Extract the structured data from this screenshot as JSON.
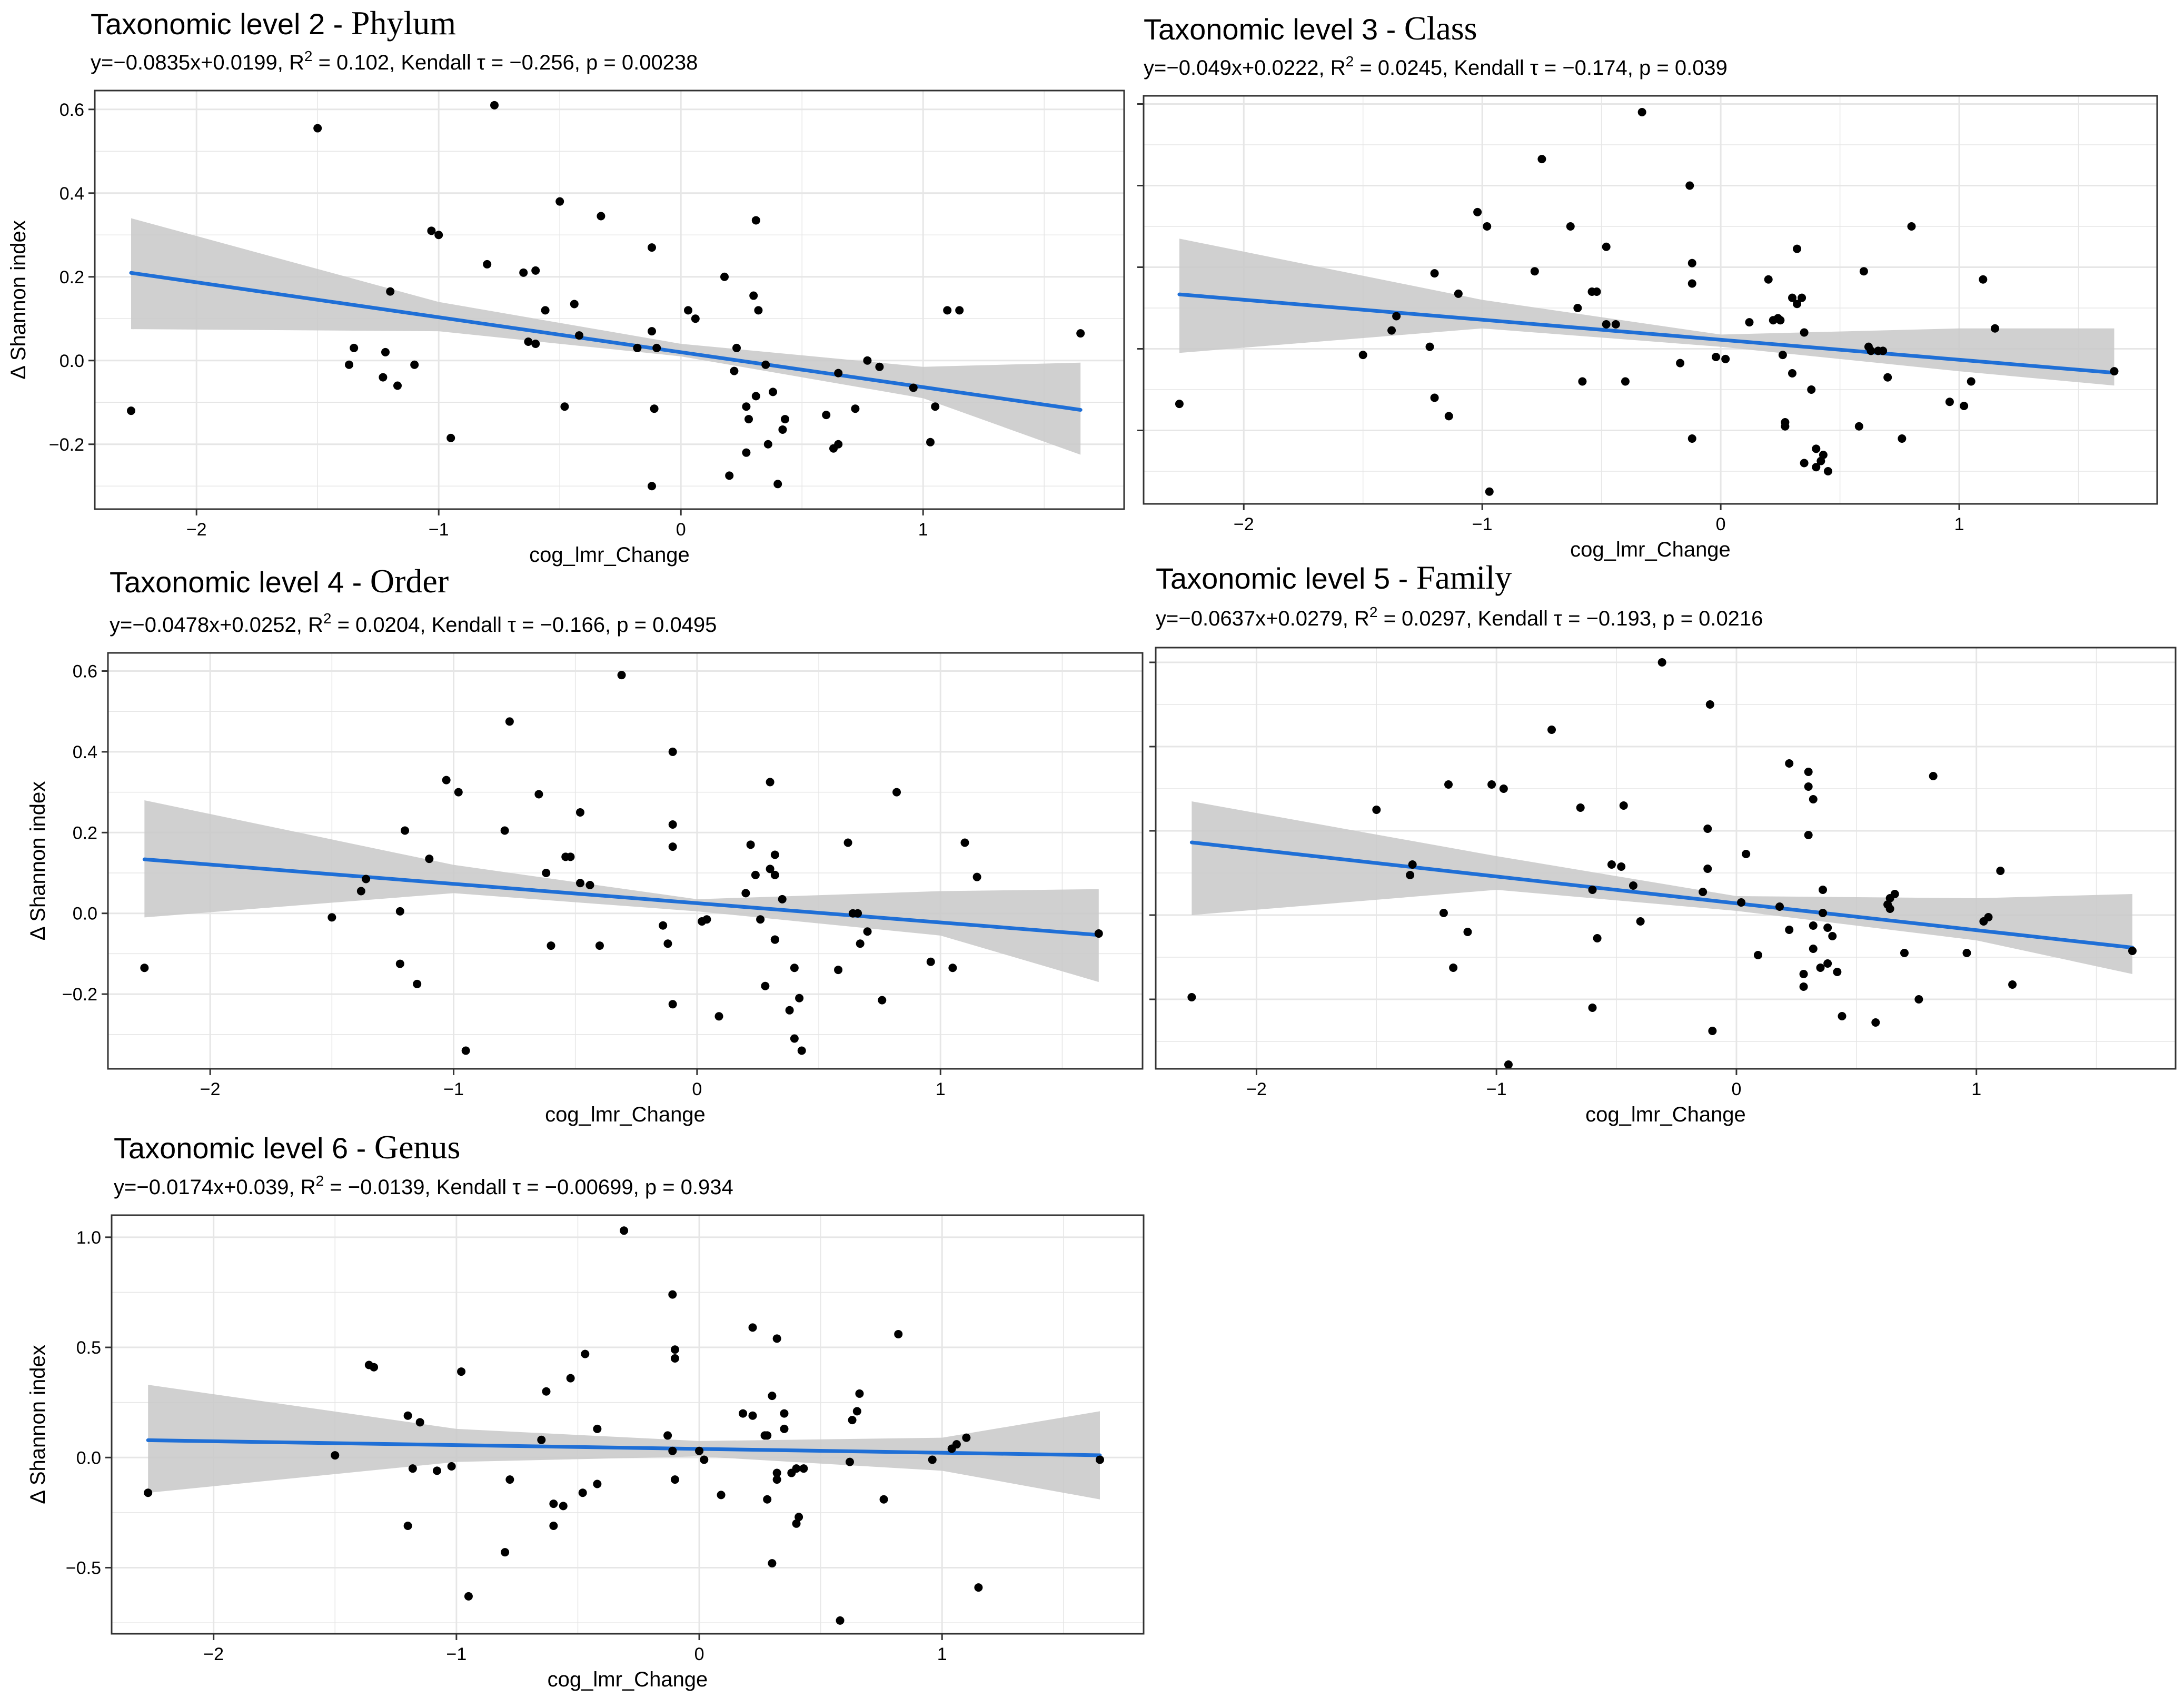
{
  "colors": {
    "line": "#1f6fd6",
    "band": "#c8c8c8",
    "point": "#000000",
    "grid": "#e6e6e6",
    "frame": "#333333"
  },
  "chart_data": [
    {
      "type": "scatter",
      "panel": "phylum",
      "title_prefix": "Taxonomic level 2 - ",
      "title_taxon": "Phylum",
      "equation": "y=−0.0835x+0.0199, R",
      "stats": " = 0.102, Kendall τ = −0.256, p = 0.00238",
      "xlabel": "cog_lmr_Change",
      "ylabel": "Δ Shannon index",
      "xlim": [
        -2.42,
        1.83
      ],
      "ylim": [
        -0.355,
        0.645
      ],
      "xticks": [
        -2,
        -1,
        0,
        1
      ],
      "xtick_labels": [
        "−2",
        "−1",
        "0",
        "1"
      ],
      "yticks": [
        -0.2,
        0.0,
        0.2,
        0.4,
        0.6
      ],
      "ytick_labels": [
        "−0.2",
        "0.0",
        "0.2",
        "0.4",
        "0.6"
      ],
      "fit": {
        "slope": -0.0835,
        "intercept": 0.0199,
        "x_range": [
          -2.27,
          1.65
        ]
      },
      "band": {
        "x": [
          -2.27,
          -1.0,
          0.0,
          1.0,
          1.65
        ],
        "lower": [
          0.075,
          0.07,
          0.01,
          -0.09,
          -0.225
        ],
        "upper": [
          0.34,
          0.14,
          0.04,
          -0.015,
          -0.005
        ]
      },
      "points": {
        "x": [
          -2.27,
          -1.5,
          -0.77,
          -1.03,
          -1.0,
          -0.5,
          -0.33,
          -0.8,
          -0.65,
          -0.6,
          -1.2,
          -1.35,
          -1.37,
          -1.23,
          -1.22,
          -1.17,
          -1.1,
          -0.95,
          -0.63,
          -0.6,
          -0.56,
          -0.48,
          -0.44,
          -0.42,
          -0.18,
          -0.12,
          -0.11,
          -0.12,
          -0.12,
          -0.1,
          0.03,
          0.06,
          0.18,
          0.31,
          0.3,
          0.32,
          0.2,
          0.23,
          0.22,
          0.35,
          0.31,
          0.38,
          0.28,
          0.27,
          0.43,
          0.42,
          0.4,
          0.36,
          0.27,
          0.6,
          0.63,
          0.65,
          0.65,
          0.72,
          0.77,
          0.82,
          0.96,
          1.05,
          1.03,
          1.1,
          1.15,
          1.65
        ],
        "y": [
          -0.12,
          0.555,
          0.61,
          0.31,
          0.3,
          0.38,
          0.345,
          0.23,
          0.21,
          0.215,
          0.165,
          0.03,
          -0.01,
          -0.04,
          0.02,
          -0.06,
          -0.01,
          -0.185,
          0.045,
          0.04,
          0.12,
          -0.11,
          0.135,
          0.06,
          0.03,
          0.27,
          -0.115,
          -0.3,
          0.07,
          0.03,
          0.12,
          0.1,
          0.2,
          0.335,
          0.155,
          0.12,
          -0.275,
          0.03,
          -0.025,
          -0.01,
          -0.085,
          -0.075,
          -0.14,
          -0.22,
          -0.14,
          -0.165,
          -0.295,
          -0.2,
          -0.11,
          -0.13,
          -0.21,
          -0.2,
          -0.03,
          -0.115,
          0.0,
          -0.015,
          -0.065,
          -0.11,
          -0.195,
          0.12,
          0.12,
          0.065
        ]
      }
    },
    {
      "type": "scatter",
      "panel": "class",
      "title_prefix": "Taxonomic level 3 - ",
      "title_taxon": "Class",
      "equation": "y=−0.049x+0.0222, R",
      "stats": " = 0.0245, Kendall τ = −0.174, p = 0.039",
      "xlabel": "cog_lmr_Change",
      "ylabel": "",
      "xlim": [
        -2.42,
        1.83
      ],
      "ylim": [
        -0.38,
        0.62
      ],
      "xticks": [
        -2,
        -1,
        0,
        1
      ],
      "xtick_labels": [
        "−2",
        "−1",
        "0",
        "1"
      ],
      "yticks": [
        -0.2,
        0.0,
        0.2,
        0.4,
        0.6
      ],
      "ytick_labels": [],
      "fit": {
        "slope": -0.049,
        "intercept": 0.0222,
        "x_range": [
          -2.27,
          1.65
        ]
      },
      "band": {
        "x": [
          -2.27,
          -1.0,
          0.0,
          1.0,
          1.65
        ],
        "lower": [
          -0.01,
          0.05,
          0.005,
          -0.055,
          -0.09
        ],
        "upper": [
          0.27,
          0.12,
          0.035,
          0.05,
          0.05
        ]
      },
      "points": {
        "x": [
          -0.33,
          -0.75,
          -0.13,
          -1.02,
          -0.98,
          -0.63,
          -0.48,
          -0.12,
          -0.12,
          -0.78,
          -0.54,
          -1.1,
          -1.2,
          -0.52,
          -0.6,
          -1.36,
          -1.38,
          -0.44,
          -0.48,
          -1.22,
          -1.5,
          -2.27,
          -1.2,
          -1.14,
          -0.58,
          -0.4,
          -0.17,
          -0.12,
          -0.02,
          0.02,
          0.2,
          0.25,
          0.24,
          0.3,
          0.32,
          0.32,
          0.34,
          0.26,
          0.35,
          0.12,
          0.22,
          0.3,
          0.6,
          0.8,
          0.62,
          0.63,
          0.66,
          0.68,
          0.7,
          0.38,
          0.4,
          0.27,
          0.27,
          0.42,
          0.4,
          0.43,
          0.35,
          0.45,
          0.58,
          0.76,
          0.96,
          1.02,
          1.05,
          1.1,
          1.15,
          1.65,
          -0.97
        ],
        "y": [
          0.58,
          0.465,
          0.4,
          0.335,
          0.3,
          0.3,
          0.25,
          0.21,
          0.16,
          0.19,
          0.14,
          0.135,
          0.185,
          0.14,
          0.1,
          0.08,
          0.045,
          0.06,
          0.06,
          0.005,
          -0.015,
          -0.135,
          -0.12,
          -0.165,
          -0.08,
          -0.08,
          -0.035,
          -0.22,
          -0.02,
          -0.025,
          0.17,
          0.07,
          0.075,
          0.125,
          0.11,
          0.245,
          0.125,
          -0.015,
          0.04,
          0.065,
          0.07,
          -0.06,
          0.19,
          0.3,
          0.005,
          -0.005,
          -0.005,
          -0.005,
          -0.07,
          -0.1,
          -0.245,
          -0.18,
          -0.19,
          -0.275,
          -0.29,
          -0.26,
          -0.28,
          -0.3,
          -0.19,
          -0.22,
          -0.13,
          -0.14,
          -0.08,
          0.17,
          0.05,
          -0.055,
          -0.35
        ]
      }
    },
    {
      "type": "scatter",
      "panel": "order",
      "title_prefix": "Taxonomic level 4 - ",
      "title_taxon": "Order",
      "equation": "y=−0.0478x+0.0252, R",
      "stats": " = 0.0204, Kendall τ = −0.166, p = 0.0495",
      "xlabel": "cog_lmr_Change",
      "ylabel": "Δ Shannon index",
      "xlim": [
        -2.42,
        1.83
      ],
      "ylim": [
        -0.385,
        0.645
      ],
      "xticks": [
        -2,
        -1,
        0,
        1
      ],
      "xtick_labels": [
        "−2",
        "−1",
        "0",
        "1"
      ],
      "yticks": [
        -0.2,
        0.0,
        0.2,
        0.4,
        0.6
      ],
      "ytick_labels": [
        "−0.2",
        "0.0",
        "0.2",
        "0.4",
        "0.6"
      ],
      "fit": {
        "slope": -0.0478,
        "intercept": 0.0252,
        "x_range": [
          -2.27,
          1.65
        ]
      },
      "band": {
        "x": [
          -2.27,
          -1.0,
          0.0,
          1.0,
          1.65
        ],
        "lower": [
          -0.01,
          0.05,
          0.005,
          -0.055,
          -0.17
        ],
        "upper": [
          0.28,
          0.12,
          0.035,
          0.055,
          0.06
        ]
      },
      "points": {
        "x": [
          -0.31,
          -0.77,
          -0.1,
          -1.03,
          -0.98,
          -0.65,
          -0.48,
          -0.1,
          -0.1,
          -0.79,
          -0.54,
          -1.1,
          -1.2,
          -0.52,
          -0.62,
          -1.36,
          -1.38,
          -0.44,
          -0.48,
          -1.22,
          -1.5,
          -2.27,
          -1.22,
          -1.15,
          -0.6,
          -0.4,
          -0.14,
          -0.12,
          0.02,
          0.04,
          0.22,
          0.24,
          0.3,
          0.32,
          0.3,
          0.32,
          0.35,
          0.26,
          0.2,
          0.62,
          0.82,
          0.64,
          0.66,
          0.7,
          0.32,
          0.32,
          0.4,
          0.28,
          0.42,
          0.4,
          0.43,
          0.38,
          0.58,
          0.76,
          0.96,
          1.05,
          1.1,
          1.15,
          1.65,
          -0.95,
          -0.1,
          0.09,
          0.67
        ],
        "y": [
          0.59,
          0.475,
          0.4,
          0.33,
          0.3,
          0.295,
          0.25,
          0.22,
          0.165,
          0.205,
          0.14,
          0.135,
          0.205,
          0.14,
          0.1,
          0.085,
          0.055,
          0.07,
          0.075,
          0.005,
          -0.01,
          -0.135,
          -0.125,
          -0.175,
          -0.08,
          -0.08,
          -0.03,
          -0.075,
          -0.02,
          -0.015,
          0.17,
          0.095,
          0.325,
          0.145,
          0.11,
          0.095,
          0.035,
          -0.015,
          0.05,
          0.175,
          0.3,
          0.0,
          0.0,
          -0.045,
          -0.065,
          -0.065,
          -0.135,
          -0.18,
          -0.21,
          -0.31,
          -0.34,
          -0.24,
          -0.14,
          -0.215,
          -0.12,
          -0.135,
          0.175,
          0.09,
          -0.05,
          -0.34,
          -0.225,
          -0.255,
          -0.075
        ]
      }
    },
    {
      "type": "scatter",
      "panel": "family",
      "title_prefix": "Taxonomic level 5 - ",
      "title_taxon": "Family",
      "equation": "y=−0.0637x+0.0279, R",
      "stats": " = 0.0297, Kendall τ = −0.193, p = 0.0216",
      "xlabel": "cog_lmr_Change",
      "ylabel": "",
      "xlim": [
        -2.42,
        1.83
      ],
      "ylim": [
        -0.365,
        0.635
      ],
      "xticks": [
        -2,
        -1,
        0,
        1
      ],
      "xtick_labels": [
        "−2",
        "−1",
        "0",
        "1"
      ],
      "yticks": [
        -0.2,
        0.0,
        0.2,
        0.4,
        0.6
      ],
      "ytick_labels": [],
      "fit": {
        "slope": -0.0637,
        "intercept": 0.0279,
        "x_range": [
          -2.27,
          1.65
        ]
      },
      "band": {
        "x": [
          -2.27,
          -1.0,
          0.0,
          1.0,
          1.65
        ],
        "lower": [
          0.0,
          0.06,
          0.01,
          -0.06,
          -0.14
        ],
        "upper": [
          0.27,
          0.14,
          0.045,
          0.04,
          0.05
        ]
      },
      "points": {
        "x": [
          -0.31,
          -0.11,
          -0.77,
          -1.02,
          -0.97,
          -0.65,
          -0.47,
          -0.12,
          -1.2,
          -1.5,
          -0.52,
          -0.6,
          -1.35,
          -1.36,
          -0.43,
          -0.48,
          -1.22,
          -1.18,
          -1.12,
          -0.58,
          -0.4,
          -0.14,
          -0.12,
          0.02,
          0.04,
          0.22,
          0.3,
          0.3,
          0.32,
          0.3,
          0.36,
          0.18,
          0.22,
          0.32,
          0.36,
          0.82,
          0.64,
          0.66,
          0.63,
          0.64,
          0.7,
          0.38,
          0.4,
          0.35,
          0.28,
          0.28,
          0.42,
          0.44,
          0.38,
          0.58,
          0.76,
          0.96,
          1.03,
          1.05,
          1.1,
          1.15,
          1.65,
          -0.95,
          -2.27,
          -0.6,
          -0.1,
          0.09,
          0.32
        ],
        "y": [
          0.6,
          0.5,
          0.44,
          0.31,
          0.3,
          0.255,
          0.26,
          0.205,
          0.31,
          0.25,
          0.12,
          0.06,
          0.12,
          0.095,
          0.07,
          0.115,
          0.005,
          -0.125,
          -0.04,
          -0.055,
          -0.015,
          0.055,
          0.11,
          0.03,
          0.145,
          0.36,
          0.305,
          0.34,
          0.275,
          0.19,
          0.06,
          0.02,
          -0.035,
          -0.025,
          0.005,
          0.33,
          0.04,
          0.05,
          0.025,
          0.015,
          -0.09,
          -0.03,
          -0.05,
          -0.125,
          -0.14,
          -0.17,
          -0.135,
          -0.24,
          -0.115,
          -0.255,
          -0.2,
          -0.09,
          -0.015,
          -0.005,
          0.105,
          -0.165,
          -0.085,
          -0.355,
          -0.195,
          -0.22,
          -0.275,
          -0.095,
          -0.08
        ]
      }
    },
    {
      "type": "scatter",
      "panel": "genus",
      "title_prefix": "Taxonomic level 6 - ",
      "title_taxon": "Genus",
      "equation": "y=−0.0174x+0.039, R",
      "stats": " = −0.0139, Kendall τ = −0.00699, p = 0.934",
      "xlabel": "cog_lmr_Change",
      "ylabel": "Δ Shannon index",
      "xlim": [
        -2.42,
        1.83
      ],
      "ylim": [
        -0.8,
        1.1
      ],
      "xticks": [
        -2,
        -1,
        0,
        1
      ],
      "xtick_labels": [
        "−2",
        "−1",
        "0",
        "1"
      ],
      "yticks": [
        -0.5,
        0.0,
        0.5,
        1.0
      ],
      "ytick_labels": [
        "−0.5",
        "0.0",
        "0.5",
        "1.0"
      ],
      "fit": {
        "slope": -0.0174,
        "intercept": 0.039,
        "x_range": [
          -2.27,
          1.65
        ]
      },
      "band": {
        "x": [
          -2.27,
          -1.0,
          0.0,
          1.0,
          1.65
        ],
        "lower": [
          -0.16,
          -0.02,
          0.005,
          -0.06,
          -0.19
        ],
        "upper": [
          0.33,
          0.13,
          0.075,
          0.09,
          0.21
        ]
      },
      "points": {
        "x": [
          -0.31,
          -0.11,
          -0.1,
          -0.1,
          0.22,
          0.32,
          0.82,
          -1.36,
          -1.34,
          -0.98,
          -0.47,
          -0.53,
          -0.63,
          -1.2,
          -1.15,
          -0.65,
          -0.42,
          -0.13,
          -0.11,
          -0.1,
          0.0,
          0.02,
          0.18,
          0.22,
          0.3,
          0.28,
          0.35,
          0.35,
          0.27,
          -1.5,
          -1.18,
          -1.02,
          -0.78,
          -0.6,
          -0.56,
          -0.48,
          -0.42,
          0.32,
          0.38,
          0.43,
          0.41,
          0.4,
          0.4,
          0.09,
          0.32,
          0.28,
          0.3,
          0.63,
          0.66,
          0.65,
          0.62,
          0.58,
          0.76,
          0.96,
          1.04,
          1.06,
          1.1,
          1.15,
          1.65,
          -2.27,
          -1.08,
          -1.2,
          -0.95,
          -0.8,
          -0.6
        ],
        "y": [
          1.03,
          0.74,
          0.49,
          0.45,
          0.59,
          0.54,
          0.56,
          0.42,
          0.41,
          0.39,
          0.47,
          0.36,
          0.3,
          0.19,
          0.16,
          0.08,
          0.13,
          0.1,
          0.03,
          -0.1,
          0.03,
          -0.01,
          0.2,
          0.19,
          0.28,
          0.1,
          0.2,
          0.13,
          0.1,
          0.01,
          -0.05,
          -0.04,
          -0.1,
          -0.21,
          -0.22,
          -0.16,
          -0.12,
          -0.07,
          -0.07,
          -0.05,
          -0.27,
          -0.3,
          -0.05,
          -0.17,
          -0.1,
          -0.19,
          -0.48,
          0.17,
          0.29,
          0.21,
          -0.02,
          -0.74,
          -0.19,
          -0.01,
          0.04,
          0.06,
          0.09,
          -0.59,
          -0.01,
          -0.16,
          -0.06,
          -0.31,
          -0.63,
          -0.43,
          -0.31
        ]
      }
    }
  ]
}
